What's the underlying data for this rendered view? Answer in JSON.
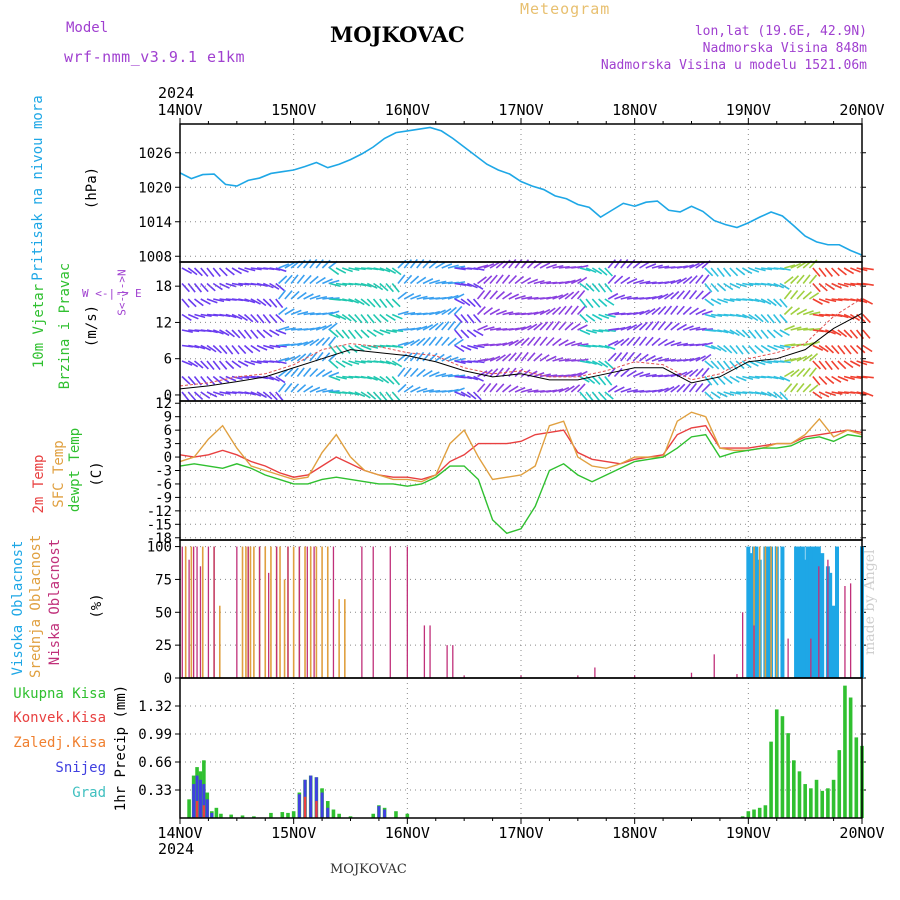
{
  "header": {
    "model_label": "Model",
    "model_name": "wrf-nmm_v3.9.1 e1km",
    "title": "MOJKOVAC",
    "meteogram_label": "Meteogram",
    "lonlat": "lon,lat (19.6E, 42.9N)",
    "altitude": "Nadmorska Visina 848m",
    "altitude_model": "Nadmorska Visina u modelu 1521.06m"
  },
  "footer": {
    "station": "MOJKOVAC",
    "made_by": "made by Angel"
  },
  "time_axis": {
    "year": "2024",
    "labels": [
      "14NOV",
      "15NOV",
      "16NOV",
      "17NOV",
      "18NOV",
      "19NOV",
      "20NOV"
    ]
  },
  "colors": {
    "pressure": "#1ea7e6",
    "wind_speed": "#000000",
    "wind_gust": "#e05050",
    "temp2m": "#e84040",
    "sfc_temp": "#e0a040",
    "dewpt": "#30c030",
    "cloud_high": "#1ea7e6",
    "cloud_mid": "#e0a040",
    "cloud_low": "#c0307a",
    "precip_total": "#30c030",
    "precip_conv": "#e84040",
    "precip_frz": "#f08030",
    "precip_snow": "#4040e0",
    "precip_hail": "#40c0c0"
  },
  "chart_data": [
    {
      "type": "line",
      "panel": "pressure",
      "ylabel_lines": [
        "Pritisak na nivou mora",
        "(hPa)"
      ],
      "yticks": [
        1008,
        1014,
        1020,
        1026
      ],
      "ylim": [
        1007,
        1031
      ],
      "x_days": [
        0,
        0.1,
        0.2,
        0.3,
        0.4,
        0.5,
        0.6,
        0.7,
        0.8,
        0.9,
        1.0,
        1.1,
        1.2,
        1.3,
        1.4,
        1.5,
        1.6,
        1.7,
        1.8,
        1.9,
        2.0,
        2.1,
        2.2,
        2.3,
        2.4,
        2.5,
        2.6,
        2.7,
        2.8,
        2.9,
        3.0,
        3.1,
        3.2,
        3.3,
        3.4,
        3.5,
        3.6,
        3.7,
        3.8,
        3.9,
        4.0,
        4.1,
        4.2,
        4.3,
        4.4,
        4.5,
        4.6,
        4.7,
        4.8,
        4.9,
        5.0,
        5.1,
        5.2,
        5.3,
        5.4,
        5.5,
        5.6,
        5.7,
        5.8,
        5.9,
        6.0
      ],
      "series": [
        {
          "values": [
            1022.5,
            1021.5,
            1022.2,
            1022.3,
            1020.5,
            1020.2,
            1021.2,
            1021.6,
            1022.4,
            1022.7,
            1023.0,
            1023.6,
            1024.3,
            1023.4,
            1024.0,
            1024.8,
            1025.8,
            1027.0,
            1028.5,
            1029.5,
            1029.8,
            1030.1,
            1030.4,
            1029.8,
            1028.5,
            1027.0,
            1025.5,
            1024.0,
            1023.0,
            1022.3,
            1021.0,
            1020.2,
            1019.6,
            1018.5,
            1018.0,
            1017.0,
            1016.5,
            1014.8,
            1016.0,
            1017.2,
            1016.7,
            1017.4,
            1017.6,
            1016.0,
            1015.7,
            1016.7,
            1015.8,
            1014.2,
            1013.5,
            1013.0,
            1013.8,
            1014.8,
            1015.7,
            1015.0,
            1013.3,
            1011.5,
            1010.5,
            1010.0,
            1010.0,
            1009.0,
            1008.2
          ]
        }
      ]
    },
    {
      "type": "line",
      "panel": "wind",
      "ylabel_lines": [
        "10m Vjetar",
        "Brzina i Pravac",
        "(m/s)"
      ],
      "compass": "W <-|-> E",
      "compass2": "S<-|->N",
      "yticks": [
        0,
        6,
        12,
        18
      ],
      "ylim": [
        -1,
        22
      ],
      "x_days": [
        0,
        0.25,
        0.5,
        0.75,
        1.0,
        1.25,
        1.5,
        1.75,
        2.0,
        2.25,
        2.5,
        2.75,
        3.0,
        3.25,
        3.5,
        3.75,
        4.0,
        4.25,
        4.5,
        4.75,
        5.0,
        5.25,
        5.5,
        5.75,
        6.0
      ],
      "series": [
        {
          "values": [
            1.0,
            1.5,
            2.2,
            3.0,
            4.5,
            6.0,
            7.5,
            7.0,
            6.5,
            5.5,
            4.0,
            3.0,
            3.5,
            2.5,
            2.5,
            3.5,
            4.5,
            4.5,
            2.0,
            3.0,
            5.5,
            6.0,
            7.5,
            11.0,
            13.5
          ]
        },
        {
          "values": [
            1.5,
            2.0,
            3.0,
            3.5,
            5.0,
            7.5,
            8.5,
            8.0,
            7.0,
            6.5,
            4.5,
            3.5,
            4.0,
            3.0,
            3.0,
            4.0,
            5.5,
            5.0,
            2.5,
            3.5,
            6.0,
            7.0,
            8.5,
            13.0,
            16.0
          ]
        }
      ]
    },
    {
      "type": "line",
      "panel": "temperature",
      "ylabel_lines": [
        "2m Temp",
        "SFC Temp",
        "dewpt Temp",
        "(C)"
      ],
      "yticks": [
        -18,
        -15,
        -12,
        -9,
        -6,
        -3,
        0,
        3,
        6,
        9,
        12
      ],
      "ylim": [
        -18.5,
        12.5
      ],
      "x_days": [
        0,
        0.125,
        0.25,
        0.375,
        0.5,
        0.625,
        0.75,
        0.875,
        1.0,
        1.125,
        1.25,
        1.375,
        1.5,
        1.625,
        1.75,
        1.875,
        2.0,
        2.125,
        2.25,
        2.375,
        2.5,
        2.625,
        2.75,
        2.875,
        3.0,
        3.125,
        3.25,
        3.375,
        3.5,
        3.625,
        3.75,
        3.875,
        4.0,
        4.125,
        4.25,
        4.375,
        4.5,
        4.625,
        4.75,
        4.875,
        5.0,
        5.125,
        5.25,
        5.375,
        5.5,
        5.625,
        5.75,
        5.875,
        6.0
      ],
      "series": [
        {
          "values": [
            0.5,
            0,
            0.5,
            1.5,
            0.5,
            -1,
            -2,
            -3.5,
            -4.5,
            -4,
            -2,
            0,
            -1.5,
            -3,
            -4,
            -4.5,
            -4.5,
            -5,
            -4,
            -1,
            0.5,
            3,
            3,
            3,
            3.5,
            5,
            5.5,
            6,
            1,
            -0.5,
            -1,
            -1.5,
            -0.5,
            0,
            0.5,
            5,
            6.5,
            7,
            2,
            2,
            2,
            2.5,
            3,
            3,
            4.5,
            5,
            5.5,
            6,
            5.5
          ]
        },
        {
          "values": [
            -1,
            0,
            4,
            7,
            2,
            -2,
            -3,
            -4,
            -5,
            -4.5,
            1,
            5,
            0,
            -3,
            -4,
            -5,
            -5,
            -5.5,
            -4,
            3,
            6,
            0,
            -5,
            -4.5,
            -4,
            -2,
            7,
            8,
            0,
            -2,
            -2.5,
            -1.5,
            0,
            0,
            0,
            8,
            10,
            9,
            2,
            1.5,
            1.5,
            2,
            3,
            3,
            5,
            8.5,
            4.5,
            6,
            5
          ]
        },
        {
          "values": [
            -2,
            -1.5,
            -2,
            -2.5,
            -1.5,
            -2.5,
            -4,
            -5,
            -6,
            -6,
            -5,
            -4.5,
            -5,
            -5.5,
            -6,
            -6,
            -6.5,
            -6,
            -4.5,
            -2,
            -2,
            -5,
            -14,
            -17,
            -16,
            -11,
            -3,
            -1.5,
            -4,
            -5.5,
            -4,
            -2.5,
            -1,
            -0.5,
            0,
            2,
            4.5,
            5,
            0,
            1,
            1.5,
            2,
            2,
            2.5,
            4,
            4.5,
            3.5,
            5,
            4.5
          ]
        }
      ]
    },
    {
      "type": "bar",
      "panel": "cloud",
      "ylabel_lines": [
        "Visoka Oblacnost",
        "Srednja Oblacnost",
        "Niska Oblacnost",
        "(%)"
      ],
      "yticks": [
        0,
        25,
        50,
        75,
        100
      ],
      "ylim": [
        0,
        105
      ],
      "series": [
        {
          "name": "Visoka Oblacnost",
          "x_days": [
            5.0,
            5.02,
            5.05,
            5.07,
            5.1,
            5.15,
            5.18,
            5.2,
            5.25,
            5.3,
            5.42,
            5.45,
            5.48,
            5.5,
            5.52,
            5.55,
            5.58,
            5.6,
            5.62,
            5.65,
            5.7,
            5.72,
            5.75,
            5.78,
            6.0
          ],
          "values": [
            100,
            95,
            100,
            100,
            90,
            100,
            100,
            100,
            100,
            100,
            100,
            100,
            100,
            90,
            100,
            100,
            100,
            100,
            100,
            95,
            85,
            80,
            55,
            100,
            100
          ]
        },
        {
          "name": "Srednja Oblacnost",
          "x_days": [
            0.05,
            0.1,
            0.2,
            0.3,
            0.35,
            0.55,
            0.58,
            0.6,
            0.62,
            0.65,
            0.7,
            0.75,
            0.8,
            0.85,
            0.88,
            0.92,
            0.95,
            1.0,
            1.05,
            1.1,
            1.15,
            1.2,
            1.25,
            1.3,
            1.4,
            1.45,
            5.05,
            5.1,
            5.15,
            5.2,
            5.25
          ],
          "values": [
            100,
            100,
            100,
            100,
            55,
            100,
            100,
            100,
            100,
            100,
            100,
            100,
            100,
            100,
            100,
            75,
            100,
            100,
            100,
            100,
            100,
            100,
            100,
            100,
            60,
            60,
            100,
            100,
            100,
            100,
            100
          ]
        },
        {
          "name": "Niska Oblacnost",
          "x_days": [
            0.02,
            0.08,
            0.12,
            0.15,
            0.18,
            0.25,
            0.3,
            0.5,
            0.6,
            0.7,
            0.78,
            0.85,
            0.95,
            1.05,
            1.12,
            1.18,
            1.35,
            1.6,
            1.7,
            1.85,
            2.0,
            2.15,
            2.2,
            2.35,
            2.4,
            2.5,
            3.0,
            3.5,
            3.65,
            4.0,
            4.5,
            4.7,
            4.9,
            4.95,
            5.05,
            5.35,
            5.55,
            5.62,
            5.7,
            5.85,
            5.9
          ],
          "values": [
            100,
            90,
            100,
            100,
            85,
            100,
            100,
            100,
            100,
            100,
            80,
            100,
            100,
            100,
            100,
            100,
            100,
            100,
            100,
            100,
            100,
            40,
            40,
            25,
            25,
            2,
            2,
            2,
            8,
            2,
            4,
            18,
            3,
            50,
            40,
            30,
            30,
            85,
            90,
            70,
            72
          ]
        }
      ]
    },
    {
      "type": "bar",
      "panel": "precip",
      "ylabel_lines": [
        "1hr Precip (mm)"
      ],
      "legend": [
        "Ukupna Kisa",
        "Konvek.Kisa",
        "Zaledj.Kisa",
        "Snijeg",
        "Grad"
      ],
      "yticks": [
        0.33,
        0.66,
        0.99,
        1.32
      ],
      "ylim": [
        0,
        1.65
      ],
      "series": [
        {
          "name": "Ukupna Kisa",
          "x_days": [
            0.08,
            0.12,
            0.15,
            0.18,
            0.21,
            0.24,
            0.28,
            0.32,
            0.36,
            0.45,
            0.55,
            0.65,
            0.8,
            0.9,
            0.95,
            1.0,
            1.05,
            1.1,
            1.15,
            1.2,
            1.25,
            1.3,
            1.35,
            1.4,
            1.5,
            1.7,
            1.75,
            1.8,
            1.9,
            2.0,
            4.95,
            5.0,
            5.05,
            5.1,
            5.15,
            5.2,
            5.25,
            5.3,
            5.35,
            5.4,
            5.45,
            5.5,
            5.55,
            5.6,
            5.65,
            5.7,
            5.75,
            5.8,
            5.85,
            5.9,
            5.95,
            6.0
          ],
          "values": [
            0.22,
            0.5,
            0.6,
            0.55,
            0.68,
            0.3,
            0.08,
            0.12,
            0.05,
            0.04,
            0.03,
            0.02,
            0.06,
            0.07,
            0.06,
            0.08,
            0.3,
            0.45,
            0.5,
            0.48,
            0.35,
            0.2,
            0.1,
            0.05,
            0.02,
            0.05,
            0.15,
            0.12,
            0.08,
            0.05,
            0.02,
            0.08,
            0.1,
            0.12,
            0.15,
            0.9,
            1.28,
            1.2,
            1.0,
            0.68,
            0.55,
            0.4,
            0.35,
            0.45,
            0.32,
            0.35,
            0.45,
            0.8,
            1.56,
            1.42,
            0.95,
            0.85
          ]
        },
        {
          "name": "Snijeg",
          "x_days": [
            0.12,
            0.15,
            0.18,
            0.21,
            0.24,
            0.28,
            1.05,
            1.1,
            1.15,
            1.2,
            1.25,
            1.3,
            1.75,
            1.8
          ],
          "values": [
            0.4,
            0.5,
            0.45,
            0.4,
            0.22,
            0.06,
            0.28,
            0.45,
            0.5,
            0.48,
            0.3,
            0.12,
            0.14,
            0.1
          ]
        },
        {
          "name": "Konvek.Kisa",
          "x_days": [
            0.15,
            0.21,
            1.1,
            1.2
          ],
          "values": [
            0.2,
            0.15,
            0.25,
            0.2
          ]
        }
      ]
    }
  ]
}
